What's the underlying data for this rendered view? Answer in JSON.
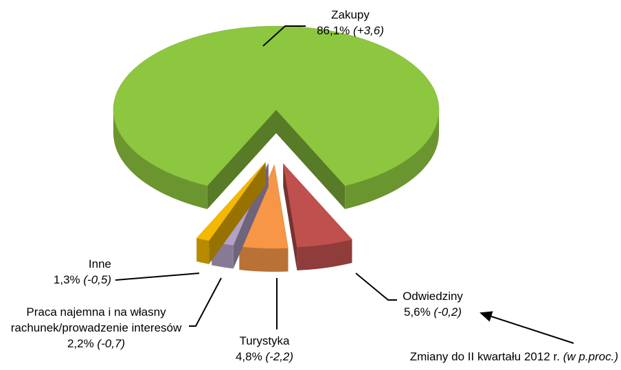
{
  "chart_data": {
    "type": "pie",
    "categories": [
      "Zakupy",
      "Odwiedziny",
      "Turystyka",
      "Praca najemna i na własny rachunek/prowadzenie interesów",
      "Inne"
    ],
    "values": [
      86.1,
      5.6,
      4.8,
      2.2,
      1.3
    ],
    "value_labels": [
      "86,1%",
      "5,6%",
      "4,8%",
      "2,2%",
      "1,3%"
    ],
    "changes": [
      3.6,
      -0.2,
      -2.2,
      -0.7,
      -0.5
    ],
    "changes_labels": [
      "(+3,6)",
      "(-0,2)",
      "(-2,2)",
      "(-0,7)",
      "(-0,5)"
    ],
    "colors": [
      "#8dc63f",
      "#c0504d",
      "#f79646",
      "#b3a2c7",
      "#f5b800"
    ],
    "annotation": "Zmiany do II kwartału 2012 r.",
    "annotation_unit": "(w p.proc.)"
  }
}
